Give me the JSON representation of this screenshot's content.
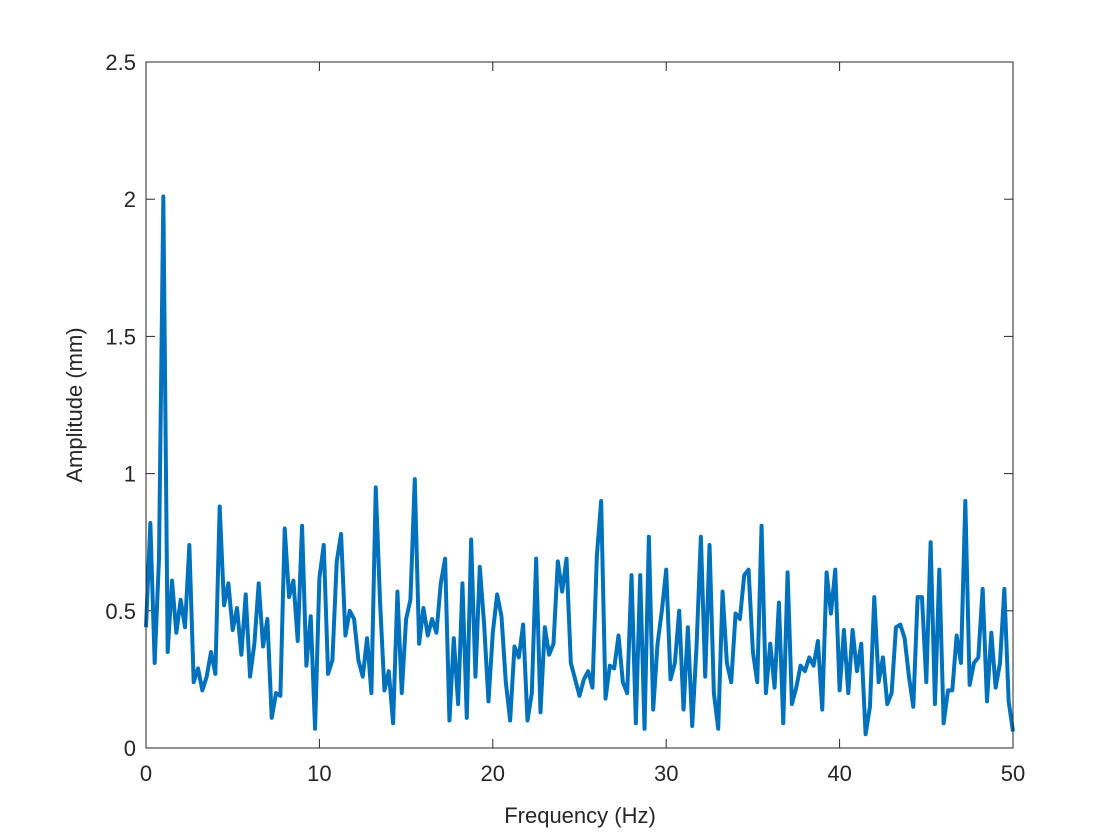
{
  "chart_data": {
    "type": "line",
    "xlabel": "Frequency (Hz)",
    "ylabel": "Amplitude (mm)",
    "xlim": [
      0,
      50
    ],
    "ylim": [
      0,
      2.5
    ],
    "xticks": [
      0,
      10,
      20,
      30,
      40,
      50
    ],
    "yticks": [
      0,
      0.5,
      1,
      1.5,
      2,
      2.5
    ],
    "grid": false,
    "x": [
      0,
      0.25,
      0.5,
      0.75,
      1,
      1.25,
      1.5,
      1.75,
      2,
      2.25,
      2.5,
      2.75,
      3,
      3.25,
      3.5,
      3.75,
      4,
      4.25,
      4.5,
      4.75,
      5,
      5.25,
      5.5,
      5.75,
      6,
      6.25,
      6.5,
      6.75,
      7,
      7.25,
      7.5,
      7.75,
      8,
      8.25,
      8.5,
      8.75,
      9,
      9.25,
      9.5,
      9.75,
      10,
      10.25,
      10.5,
      10.75,
      11,
      11.25,
      11.5,
      11.75,
      12,
      12.25,
      12.5,
      12.75,
      13,
      13.25,
      13.5,
      13.75,
      14,
      14.25,
      14.5,
      14.75,
      15,
      15.25,
      15.5,
      15.75,
      16,
      16.25,
      16.5,
      16.75,
      17,
      17.25,
      17.5,
      17.75,
      18,
      18.25,
      18.5,
      18.75,
      19,
      19.25,
      19.5,
      19.75,
      20,
      20.25,
      20.5,
      20.75,
      21,
      21.25,
      21.5,
      21.75,
      22,
      22.25,
      22.5,
      22.75,
      23,
      23.25,
      23.5,
      23.75,
      24,
      24.25,
      24.5,
      24.75,
      25,
      25.25,
      25.5,
      25.75,
      26,
      26.25,
      26.5,
      26.75,
      27,
      27.25,
      27.5,
      27.75,
      28,
      28.25,
      28.5,
      28.75,
      29,
      29.25,
      29.5,
      29.75,
      30,
      30.25,
      30.5,
      30.75,
      31,
      31.25,
      31.5,
      31.75,
      32,
      32.25,
      32.5,
      32.75,
      33,
      33.25,
      33.5,
      33.75,
      34,
      34.25,
      34.5,
      34.75,
      35,
      35.25,
      35.5,
      35.75,
      36,
      36.25,
      36.5,
      36.75,
      37,
      37.25,
      37.5,
      37.75,
      38,
      38.25,
      38.5,
      38.75,
      39,
      39.25,
      39.5,
      39.75,
      40,
      40.25,
      40.5,
      40.75,
      41,
      41.25,
      41.5,
      41.75,
      42,
      42.25,
      42.5,
      42.75,
      43,
      43.25,
      43.5,
      43.75,
      44,
      44.25,
      44.5,
      44.75,
      45,
      45.25,
      45.5,
      45.75,
      46,
      46.25,
      46.5,
      46.75,
      47,
      47.25,
      47.5,
      47.75,
      48,
      48.25,
      48.5,
      48.75,
      49,
      49.25,
      49.5,
      49.75,
      50
    ],
    "series": [
      {
        "color": "#0072bd",
        "values": [
          0.44,
          0.82,
          0.31,
          0.69,
          2.01,
          0.35,
          0.61,
          0.42,
          0.54,
          0.44,
          0.74,
          0.24,
          0.29,
          0.21,
          0.26,
          0.35,
          0.27,
          0.88,
          0.52,
          0.6,
          0.43,
          0.51,
          0.34,
          0.56,
          0.26,
          0.38,
          0.6,
          0.37,
          0.47,
          0.11,
          0.2,
          0.19,
          0.8,
          0.55,
          0.61,
          0.39,
          0.81,
          0.3,
          0.48,
          0.07,
          0.62,
          0.74,
          0.27,
          0.32,
          0.68,
          0.78,
          0.41,
          0.5,
          0.47,
          0.32,
          0.26,
          0.4,
          0.2,
          0.95,
          0.53,
          0.21,
          0.28,
          0.09,
          0.57,
          0.2,
          0.47,
          0.54,
          0.98,
          0.38,
          0.51,
          0.41,
          0.47,
          0.42,
          0.6,
          0.69,
          0.1,
          0.4,
          0.16,
          0.6,
          0.11,
          0.76,
          0.26,
          0.66,
          0.45,
          0.17,
          0.42,
          0.56,
          0.48,
          0.24,
          0.1,
          0.37,
          0.33,
          0.45,
          0.1,
          0.2,
          0.69,
          0.13,
          0.44,
          0.34,
          0.38,
          0.68,
          0.57,
          0.69,
          0.31,
          0.25,
          0.19,
          0.25,
          0.28,
          0.22,
          0.7,
          0.9,
          0.18,
          0.3,
          0.29,
          0.41,
          0.24,
          0.2,
          0.63,
          0.09,
          0.63,
          0.07,
          0.77,
          0.14,
          0.38,
          0.5,
          0.65,
          0.25,
          0.31,
          0.5,
          0.14,
          0.44,
          0.08,
          0.37,
          0.77,
          0.26,
          0.74,
          0.2,
          0.07,
          0.57,
          0.31,
          0.24,
          0.49,
          0.47,
          0.63,
          0.65,
          0.35,
          0.24,
          0.81,
          0.2,
          0.38,
          0.22,
          0.53,
          0.09,
          0.64,
          0.16,
          0.22,
          0.3,
          0.28,
          0.33,
          0.3,
          0.39,
          0.14,
          0.64,
          0.49,
          0.65,
          0.21,
          0.43,
          0.2,
          0.43,
          0.28,
          0.38,
          0.05,
          0.15,
          0.55,
          0.24,
          0.33,
          0.16,
          0.2,
          0.44,
          0.45,
          0.4,
          0.26,
          0.15,
          0.55,
          0.55,
          0.24,
          0.75,
          0.16,
          0.65,
          0.09,
          0.21,
          0.21,
          0.41,
          0.31,
          0.9,
          0.23,
          0.31,
          0.33,
          0.58,
          0.17,
          0.42,
          0.22,
          0.31,
          0.58,
          0.17,
          0.06
        ]
      }
    ]
  }
}
